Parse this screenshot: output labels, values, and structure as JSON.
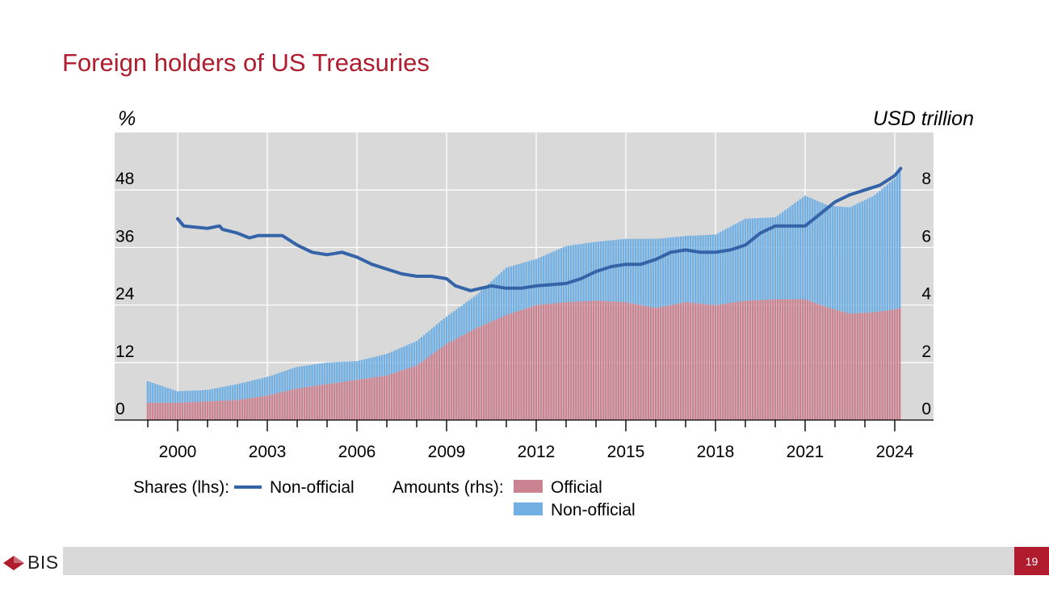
{
  "title": "Foreign holders of US Treasuries",
  "page_number": "19",
  "logo": {
    "icon": "bis-diamond-icon",
    "text": "BIS"
  },
  "colors": {
    "title": "#b01c2e",
    "official": "#c98391",
    "nonofficial_bar": "#72b0e3",
    "share_line": "#3463a8",
    "plot_bg": "#d9d9d9"
  },
  "legend": {
    "shares_label": "Shares (lhs):",
    "shares_item": "Non-official",
    "amounts_label": "Amounts (rhs):",
    "official_item": "Official",
    "nonofficial_item": "Non-official"
  },
  "chart_data": {
    "type": "bar",
    "left_axis_label": "%",
    "right_axis_label": "USD trillion",
    "x_ticks": [
      "2000",
      "2003",
      "2006",
      "2009",
      "2012",
      "2015",
      "2018",
      "2021",
      "2024"
    ],
    "x_range": [
      1999.0,
      2025.0
    ],
    "ylim_left": [
      0,
      60
    ],
    "ylim_right": [
      0,
      10
    ],
    "y_ticks_left": [
      0,
      12,
      24,
      36,
      48
    ],
    "y_ticks_right": [
      0,
      2,
      4,
      6,
      8
    ],
    "grid": true,
    "series": [
      {
        "name": "Official",
        "kind": "stacked-bar",
        "axis": "right",
        "points": [
          [
            1999.0,
            0.6
          ],
          [
            2000.0,
            0.6
          ],
          [
            2001.0,
            0.65
          ],
          [
            2002.0,
            0.7
          ],
          [
            2003.0,
            0.85
          ],
          [
            2004.0,
            1.1
          ],
          [
            2005.0,
            1.25
          ],
          [
            2006.0,
            1.4
          ],
          [
            2007.0,
            1.55
          ],
          [
            2008.0,
            1.9
          ],
          [
            2009.0,
            2.65
          ],
          [
            2010.0,
            3.2
          ],
          [
            2011.0,
            3.65
          ],
          [
            2012.0,
            4.0
          ],
          [
            2013.0,
            4.1
          ],
          [
            2014.0,
            4.15
          ],
          [
            2015.0,
            4.1
          ],
          [
            2016.0,
            3.9
          ],
          [
            2017.0,
            4.1
          ],
          [
            2018.0,
            4.0
          ],
          [
            2019.0,
            4.15
          ],
          [
            2020.0,
            4.2
          ],
          [
            2021.0,
            4.2
          ],
          [
            2021.8,
            3.9
          ],
          [
            2022.5,
            3.7
          ],
          [
            2023.3,
            3.75
          ],
          [
            2024.0,
            3.85
          ],
          [
            2024.2,
            3.9
          ]
        ]
      },
      {
        "name": "Non-official",
        "kind": "stacked-bar",
        "axis": "right",
        "points": [
          [
            1999.0,
            0.75
          ],
          [
            2000.0,
            0.4
          ],
          [
            2001.0,
            0.4
          ],
          [
            2002.0,
            0.55
          ],
          [
            2003.0,
            0.65
          ],
          [
            2004.0,
            0.75
          ],
          [
            2005.0,
            0.75
          ],
          [
            2006.0,
            0.65
          ],
          [
            2007.0,
            0.75
          ],
          [
            2008.0,
            0.85
          ],
          [
            2009.0,
            0.95
          ],
          [
            2010.0,
            1.15
          ],
          [
            2011.0,
            1.65
          ],
          [
            2012.0,
            1.6
          ],
          [
            2013.0,
            1.95
          ],
          [
            2014.0,
            2.05
          ],
          [
            2015.0,
            2.2
          ],
          [
            2016.0,
            2.4
          ],
          [
            2017.0,
            2.3
          ],
          [
            2018.0,
            2.45
          ],
          [
            2019.0,
            2.85
          ],
          [
            2020.0,
            2.85
          ],
          [
            2021.0,
            3.6
          ],
          [
            2021.8,
            3.55
          ],
          [
            2022.5,
            3.7
          ],
          [
            2023.3,
            4.05
          ],
          [
            2024.0,
            4.55
          ],
          [
            2024.2,
            4.85
          ]
        ]
      },
      {
        "name": "Non-official",
        "kind": "line",
        "axis": "left",
        "points": [
          [
            2000.0,
            42.0
          ],
          [
            2000.2,
            40.5
          ],
          [
            2001.0,
            40.0
          ],
          [
            2001.4,
            40.5
          ],
          [
            2001.5,
            39.8
          ],
          [
            2002.0,
            39.0
          ],
          [
            2002.4,
            38.0
          ],
          [
            2002.7,
            38.5
          ],
          [
            2003.5,
            38.5
          ],
          [
            2004.0,
            36.5
          ],
          [
            2004.5,
            35.0
          ],
          [
            2005.0,
            34.5
          ],
          [
            2005.5,
            35.0
          ],
          [
            2006.0,
            34.0
          ],
          [
            2006.5,
            32.5
          ],
          [
            2007.0,
            31.5
          ],
          [
            2007.5,
            30.5
          ],
          [
            2008.0,
            30.0
          ],
          [
            2008.5,
            30.0
          ],
          [
            2009.0,
            29.5
          ],
          [
            2009.3,
            28.0
          ],
          [
            2009.8,
            27.0
          ],
          [
            2010.5,
            28.0
          ],
          [
            2011.0,
            27.5
          ],
          [
            2011.5,
            27.5
          ],
          [
            2012.0,
            28.0
          ],
          [
            2013.0,
            28.5
          ],
          [
            2013.5,
            29.5
          ],
          [
            2014.0,
            31.0
          ],
          [
            2014.5,
            32.0
          ],
          [
            2015.0,
            32.5
          ],
          [
            2015.5,
            32.5
          ],
          [
            2016.0,
            33.5
          ],
          [
            2016.5,
            35.0
          ],
          [
            2017.0,
            35.5
          ],
          [
            2017.5,
            35.0
          ],
          [
            2018.0,
            35.0
          ],
          [
            2018.5,
            35.5
          ],
          [
            2019.0,
            36.5
          ],
          [
            2019.5,
            39.0
          ],
          [
            2020.0,
            40.5
          ],
          [
            2020.5,
            40.5
          ],
          [
            2021.0,
            40.5
          ],
          [
            2021.5,
            43.0
          ],
          [
            2022.0,
            45.5
          ],
          [
            2022.5,
            47.0
          ],
          [
            2023.0,
            48.0
          ],
          [
            2023.5,
            49.0
          ],
          [
            2024.0,
            51.0
          ],
          [
            2024.2,
            52.5
          ]
        ]
      }
    ]
  }
}
